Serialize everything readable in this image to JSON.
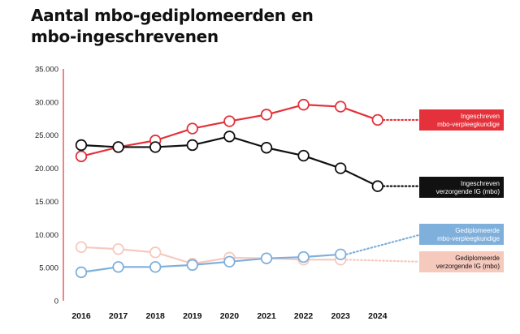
{
  "title_line1": "Aantal mbo-gediplomeerden en",
  "title_line2": "mbo-ingeschrevenen",
  "chart_data": {
    "type": "line",
    "x": [
      "2016",
      "2017",
      "2018",
      "2019",
      "2020",
      "2021",
      "2022",
      "2023",
      "2024"
    ],
    "ylim": [
      0,
      35000
    ],
    "yticks": [
      "35.000",
      "30.000",
      "25.000",
      "20.000",
      "15.000",
      "10.000",
      "5.000",
      "0"
    ],
    "yticks_values": [
      35000,
      30000,
      25000,
      20000,
      15000,
      10000,
      5000,
      0
    ],
    "grid": false,
    "series": [
      {
        "id": "ing-verpleeg",
        "label_lines": [
          "Ingeschreven",
          "mbo-verpleegkundige"
        ],
        "color": "#e4313b",
        "text_color": "#ffffff",
        "values": [
          21800,
          23200,
          24200,
          26000,
          27100,
          28100,
          29600,
          29300,
          27300
        ],
        "dotted_tail": true,
        "faded": false
      },
      {
        "id": "ing-ig",
        "label_lines": [
          "Ingeschreven",
          "verzorgende IG (mbo)"
        ],
        "color": "#111111",
        "text_color": "#ffffff",
        "values": [
          23500,
          23200,
          23200,
          23500,
          24800,
          23100,
          21900,
          20000,
          17300
        ],
        "dotted_tail": true,
        "faded": false
      },
      {
        "id": "dipl-verpleeg",
        "label_lines": [
          "Gediplomeerde",
          "mbo-verpleegkundige"
        ],
        "color": "#7fb0dc",
        "text_color": "#ffffff",
        "values": [
          4300,
          5100,
          5100,
          5400,
          5900,
          6400,
          6600,
          7000,
          null
        ],
        "dotted_tail": true,
        "dotted_target": 9900,
        "faded": false
      },
      {
        "id": "dipl-ig",
        "label_lines": [
          "Gediplomeerde",
          "verzorgende IG (mbo)"
        ],
        "color": "#f6c9bd",
        "text_color": "#111111",
        "values": [
          8100,
          7800,
          7300,
          5600,
          6500,
          6400,
          6200,
          6200,
          null
        ],
        "dotted_tail": true,
        "dotted_target": 5900,
        "faded": true
      }
    ]
  }
}
